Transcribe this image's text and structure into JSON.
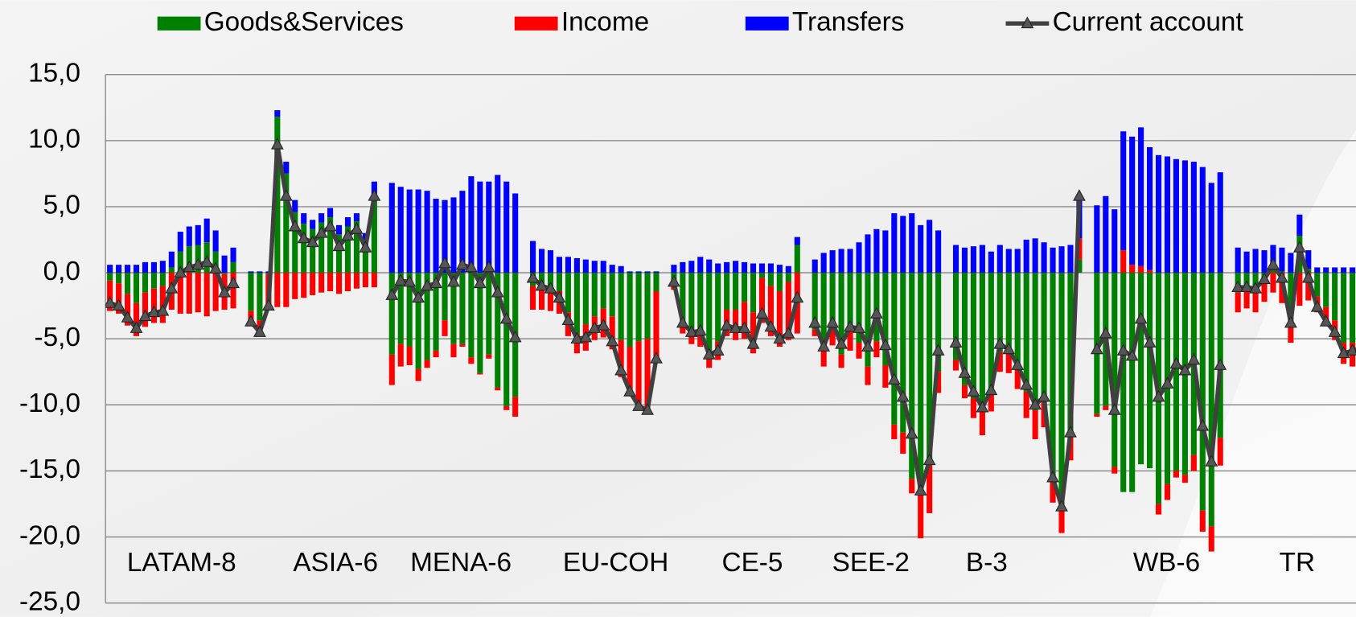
{
  "chart_data": {
    "type": "bar",
    "stacked": true,
    "groups": [
      "LATAM-8",
      "ASIA-6",
      "MENA-6",
      "EU-COH",
      "CE-5",
      "SEE-2",
      "B-3",
      "WB-6",
      "TR"
    ],
    "ylim": [
      -25,
      15
    ],
    "yticks": [
      {
        "value": -25,
        "label": "-25,0"
      },
      {
        "value": -20,
        "label": "-20,0"
      },
      {
        "value": -15,
        "label": "-15,0"
      },
      {
        "value": -10,
        "label": "-10,0"
      },
      {
        "value": -5,
        "label": "-5,0"
      },
      {
        "value": 0,
        "label": "0,0"
      },
      {
        "value": 5,
        "label": "5,0"
      },
      {
        "value": 10,
        "label": "10,0"
      },
      {
        "value": 15,
        "label": "15,0"
      }
    ],
    "grid": true,
    "legend": "top",
    "series": [
      {
        "name": "Goods&Services",
        "color": "#008000",
        "values": [
          [
            -0.6,
            -0.8,
            -1.6,
            -2.3,
            -1.5,
            -1.2,
            -1.0,
            0.4,
            1.6,
            2.0,
            2.1,
            2.3,
            1.6,
            -0.1,
            0.8
          ],
          [
            -2.9,
            -3.6,
            -0.1,
            11.8,
            7.5,
            4.6,
            3.7,
            3.3,
            3.8,
            4.2,
            2.9,
            3.5,
            3.9,
            2.4,
            5.9
          ],
          [
            -6.2,
            -5.4,
            -5.6,
            -7.3,
            -6.6,
            -5.9,
            -3.6,
            -5.4,
            -5.4,
            -6.4,
            -7.6,
            -6.2,
            -8.7,
            -10.1,
            -9.4
          ],
          [
            -1.0,
            -0.9,
            -1.1,
            -1.4,
            -3.0,
            -4.6,
            -3.9,
            -3.3,
            -2.7,
            -3.3,
            -5.1,
            -5.6,
            -5.2,
            -5.0,
            -1.4
          ],
          [
            -0.7,
            -4.1,
            -4.4,
            -4.7,
            -5.9,
            -5.2,
            -2.8,
            -2.8,
            -2.2,
            -3.0,
            -0.4,
            -1.0,
            -1.4,
            -0.7,
            2.1
          ],
          [
            -4.3,
            -5.8,
            -4.1,
            -6.2,
            -4.4,
            -5.3,
            -7.1,
            -5.2,
            -7.0,
            -11.5,
            -12.1,
            -15.6,
            -15.9,
            -14.2,
            -7.5
          ],
          [
            -6.6,
            -8.5,
            -9.5,
            -10.5,
            -9.1,
            -6.0,
            -5.9,
            -6.9,
            -9.0,
            -10.4,
            -9.4,
            -15.6,
            -18.0,
            -12.3,
            1.0
          ],
          [
            -10.7,
            -10.1,
            -14.7,
            -16.6,
            -16.6,
            -14.5,
            -14.8,
            -17.5,
            -16.0,
            -15.0,
            -15.3,
            -13.8,
            -18.0,
            -19.2,
            -12.5
          ],
          [
            -1.5,
            -1.3,
            -1.4,
            -0.4,
            0.2,
            0.1,
            -3.7,
            2.8,
            0.3,
            -1.8,
            -2.6,
            -3.6,
            -5.3,
            -5.3,
            -5.6
          ]
        ]
      },
      {
        "name": "Income",
        "color": "#ff0000",
        "values": [
          [
            -2.3,
            -2.3,
            -2.4,
            -2.5,
            -2.6,
            -2.6,
            -2.8,
            -2.8,
            -3.1,
            -3.1,
            -3.0,
            -3.3,
            -2.9,
            -2.7,
            -2.7
          ],
          [
            -0.9,
            -1.0,
            -2.5,
            -2.6,
            -2.6,
            -2.0,
            -1.9,
            -1.7,
            -1.5,
            -1.4,
            -1.6,
            -1.4,
            -1.2,
            -1.1,
            -1.1
          ],
          [
            -2.3,
            -1.7,
            -1.4,
            -0.9,
            -0.6,
            -0.5,
            -1.2,
            -1.0,
            -0.2,
            -0.5,
            -0.1,
            -0.3,
            -0.2,
            -0.3,
            -1.5
          ],
          [
            -1.8,
            -1.9,
            -1.8,
            -1.7,
            -1.8,
            -1.5,
            -2.0,
            -1.8,
            -2.2,
            -2.5,
            -2.8,
            -3.5,
            -5.0,
            -5.5,
            -5.2
          ],
          [
            -0.6,
            -0.5,
            -1.0,
            -0.9,
            -1.3,
            -1.4,
            -2.0,
            -2.3,
            -2.8,
            -3.1,
            -3.4,
            -3.8,
            -4.2,
            -4.4,
            -4.6
          ],
          [
            -0.5,
            -1.3,
            -1.4,
            -1.0,
            -1.5,
            -1.2,
            -1.4,
            -1.2,
            -1.7,
            -1.1,
            -1.6,
            -1.1,
            -4.2,
            -4.0,
            -1.6
          ],
          [
            -0.8,
            -1.0,
            -1.5,
            -1.8,
            -1.4,
            -1.5,
            -1.7,
            -1.9,
            -2.0,
            -2.2,
            -2.3,
            -1.8,
            -1.7,
            -1.9,
            1.6
          ],
          [
            -0.2,
            -0.3,
            -0.5,
            1.7,
            0.6,
            0.5,
            0.2,
            -0.8,
            -1.2,
            -0.5,
            -0.6,
            -1.2,
            -1.6,
            -1.9,
            -2.1
          ],
          [
            -1.5,
            -1.4,
            -1.6,
            -1.8,
            -1.5,
            -2.3,
            -1.6,
            -2.5,
            -2.1,
            -1.2,
            -1.3,
            -1.5,
            -1.6,
            -1.8,
            -1.5
          ]
        ]
      },
      {
        "name": "Transfers",
        "color": "#0000ff",
        "values": [
          [
            0.6,
            0.6,
            0.6,
            0.6,
            0.8,
            0.8,
            0.9,
            1.2,
            1.5,
            1.5,
            1.5,
            1.8,
            1.6,
            1.3,
            1.1
          ],
          [
            0.1,
            0.1,
            0.1,
            0.5,
            0.9,
            0.9,
            0.8,
            0.7,
            0.7,
            0.7,
            0.7,
            0.7,
            0.6,
            0.6,
            1.0
          ],
          [
            6.8,
            6.5,
            6.3,
            6.3,
            6.2,
            5.6,
            5.5,
            5.7,
            6.2,
            7.3,
            6.9,
            6.9,
            7.4,
            6.9,
            6.0
          ],
          [
            2.4,
            1.8,
            1.7,
            1.2,
            1.2,
            1.1,
            1.0,
            0.9,
            0.9,
            0.6,
            0.5,
            0.1,
            0.1,
            0.1,
            0.1
          ],
          [
            0.6,
            0.8,
            0.9,
            1.2,
            1.0,
            0.7,
            0.8,
            0.9,
            0.8,
            0.7,
            0.7,
            0.7,
            0.6,
            0.5,
            0.6
          ],
          [
            1.0,
            1.5,
            1.7,
            1.8,
            1.8,
            2.3,
            2.9,
            3.3,
            3.2,
            4.5,
            4.3,
            4.5,
            3.6,
            4.0,
            3.2
          ],
          [
            2.1,
            1.9,
            2.0,
            2.1,
            1.6,
            2.1,
            1.8,
            1.8,
            2.5,
            2.6,
            2.3,
            1.9,
            2.0,
            2.1,
            3.2
          ],
          [
            5.1,
            5.8,
            4.8,
            9.0,
            9.7,
            10.5,
            9.3,
            8.9,
            8.8,
            8.6,
            8.5,
            8.4,
            8.0,
            6.8,
            7.6
          ],
          [
            1.9,
            1.6,
            1.8,
            1.7,
            1.9,
            1.8,
            1.5,
            1.6,
            1.4,
            0.4,
            0.4,
            0.4,
            0.4,
            0.4,
            0.4
          ]
        ]
      },
      {
        "name": "Current account",
        "color": "#404040",
        "type": "line",
        "marker": "triangle",
        "values": [
          [
            -2.3,
            -2.5,
            -3.4,
            -4.2,
            -3.3,
            -3.0,
            -2.9,
            -1.2,
            0.0,
            0.4,
            0.6,
            0.8,
            0.3,
            -1.5,
            -0.8
          ],
          [
            -3.7,
            -4.5,
            -2.5,
            9.7,
            5.8,
            3.5,
            2.6,
            2.3,
            3.0,
            3.5,
            2.0,
            2.8,
            3.3,
            1.9,
            5.8
          ],
          [
            -1.7,
            -0.6,
            -0.7,
            -1.9,
            -1.0,
            -0.8,
            0.7,
            -0.7,
            0.6,
            0.4,
            -0.8,
            0.4,
            -1.5,
            -3.5,
            -4.9
          ],
          [
            -0.4,
            -1.0,
            -1.2,
            -1.9,
            -3.6,
            -5.0,
            -4.9,
            -4.2,
            -4.0,
            -5.2,
            -7.4,
            -9.0,
            -10.1,
            -10.4,
            -6.5
          ],
          [
            -0.7,
            -3.8,
            -4.5,
            -4.4,
            -6.2,
            -5.9,
            -4.0,
            -4.2,
            -4.2,
            -5.4,
            -3.1,
            -4.1,
            -5.0,
            -4.6,
            -1.9
          ],
          [
            -3.8,
            -5.6,
            -3.8,
            -5.4,
            -4.1,
            -4.2,
            -5.6,
            -3.1,
            -5.5,
            -8.1,
            -9.4,
            -12.2,
            -16.5,
            -14.2,
            -5.9
          ],
          [
            -5.3,
            -7.6,
            -9.0,
            -10.2,
            -8.9,
            -5.4,
            -5.8,
            -7.0,
            -8.5,
            -10.0,
            -9.4,
            -15.5,
            -17.7,
            -12.1,
            5.8
          ],
          [
            -5.8,
            -4.6,
            -10.4,
            -5.9,
            -6.3,
            -3.5,
            -5.3,
            -9.4,
            -8.4,
            -6.9,
            -7.4,
            -6.6,
            -11.6,
            -14.3,
            -7.0
          ],
          [
            -1.1,
            -1.1,
            -1.2,
            -0.5,
            0.6,
            -0.4,
            -3.8,
            1.9,
            -0.4,
            -2.6,
            -3.7,
            -4.5,
            -6.1,
            -5.9,
            -5.7
          ]
        ]
      }
    ]
  }
}
